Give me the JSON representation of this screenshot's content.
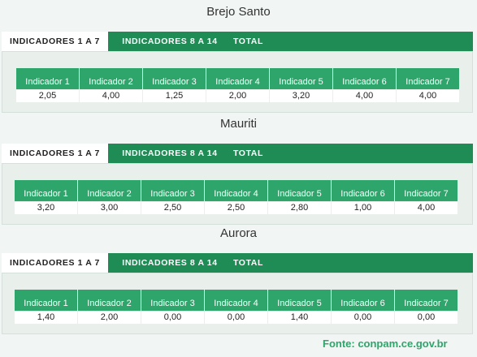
{
  "panels": [
    {
      "title": "Brejo Santo",
      "tabs": [
        "INDICADORES 1 A 7",
        "INDICADORES 8 A 14",
        "TOTAL"
      ],
      "headers": [
        "Indicador 1",
        "Indicador 2",
        "Indicador 3",
        "Indicador 4",
        "Indicador 5",
        "Indicador 6",
        "Indicador 7"
      ],
      "values": [
        "2,05",
        "4,00",
        "1,25",
        "2,00",
        "3,20",
        "4,00",
        "4,00"
      ]
    },
    {
      "title": "Mauriti",
      "tabs": [
        "INDICADORES 1 A 7",
        "INDICADORES 8 A 14",
        "TOTAL"
      ],
      "headers": [
        "Indicador 1",
        "Indicador 2",
        "Indicador 3",
        "Indicador 4",
        "Indicador 5",
        "Indicador 6",
        "Indicador 7"
      ],
      "values": [
        "3,20",
        "3,00",
        "2,50",
        "2,50",
        "2,80",
        "1,00",
        "4,00"
      ]
    },
    {
      "title": "Aurora",
      "tabs": [
        "INDICADORES 1 A 7",
        "INDICADORES 8 A 14",
        "TOTAL"
      ],
      "headers": [
        "Indicador 1",
        "Indicador 2",
        "Indicador 3",
        "Indicador 4",
        "Indicador 5",
        "Indicador 6",
        "Indicador 7"
      ],
      "values": [
        "1,40",
        "2,00",
        "0,00",
        "0,00",
        "1,40",
        "0,00",
        "0,00"
      ]
    }
  ],
  "footer": "Fonte: conpam.ce.gov.br"
}
